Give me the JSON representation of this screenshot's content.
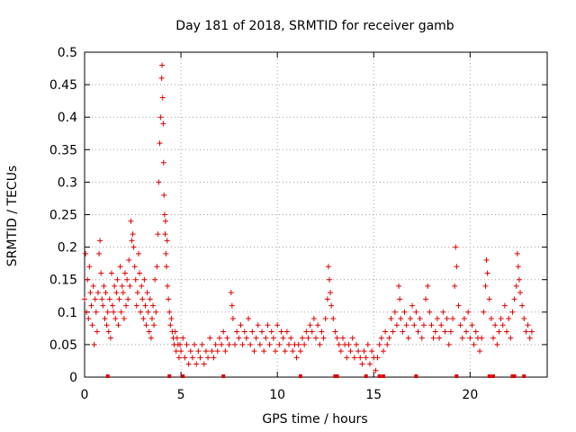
{
  "chart_data": {
    "type": "scatter",
    "title": "Day 181 of 2018, SRMTID for receiver gamb",
    "xlabel": "GPS time / hours",
    "ylabel": "SRMTID / TECUs",
    "xlim": [
      0,
      24
    ],
    "ylim": [
      0,
      0.5
    ],
    "x_ticks": [
      0,
      5,
      10,
      15,
      20
    ],
    "y_ticks": [
      0,
      0.05,
      0.1,
      0.15,
      0.2,
      0.25,
      0.3,
      0.35,
      0.4,
      0.45,
      0.5
    ],
    "x_tick_labels": [
      "0",
      "5",
      "10",
      "15",
      "20"
    ],
    "y_tick_labels": [
      "0",
      "0.05",
      "0.1",
      "0.15",
      "0.2",
      "0.25",
      "0.3",
      "0.35",
      "0.4",
      "0.45",
      "0.5"
    ],
    "grid": true,
    "marker": "+",
    "color": "#e00000",
    "series": [
      {
        "name": "SRMTID",
        "points": [
          [
            0.0,
            0.12
          ],
          [
            0.05,
            0.19
          ],
          [
            0.1,
            0.1
          ],
          [
            0.15,
            0.15
          ],
          [
            0.2,
            0.09
          ],
          [
            0.25,
            0.17
          ],
          [
            0.3,
            0.13
          ],
          [
            0.35,
            0.11
          ],
          [
            0.4,
            0.08
          ],
          [
            0.45,
            0.14
          ],
          [
            0.5,
            0.05
          ],
          [
            0.55,
            0.12
          ],
          [
            0.6,
            0.1
          ],
          [
            0.65,
            0.07
          ],
          [
            0.7,
            0.13
          ],
          [
            0.75,
            0.19
          ],
          [
            0.8,
            0.21
          ],
          [
            0.85,
            0.16
          ],
          [
            0.9,
            0.12
          ],
          [
            0.95,
            0.11
          ],
          [
            1.0,
            0.14
          ],
          [
            1.05,
            0.09
          ],
          [
            1.1,
            0.13
          ],
          [
            1.15,
            0.08
          ],
          [
            1.2,
            0.1
          ],
          [
            1.25,
            0.07
          ],
          [
            1.3,
            0.12
          ],
          [
            1.35,
            0.06
          ],
          [
            1.4,
            0.16
          ],
          [
            1.45,
            0.11
          ],
          [
            1.5,
            0.1
          ],
          [
            1.55,
            0.14
          ],
          [
            1.6,
            0.09
          ],
          [
            1.65,
            0.13
          ],
          [
            1.7,
            0.15
          ],
          [
            1.75,
            0.08
          ],
          [
            1.8,
            0.12
          ],
          [
            1.85,
            0.17
          ],
          [
            1.9,
            0.1
          ],
          [
            1.95,
            0.14
          ],
          [
            2.0,
            0.13
          ],
          [
            2.05,
            0.09
          ],
          [
            2.1,
            0.16
          ],
          [
            2.15,
            0.11
          ],
          [
            2.2,
            0.15
          ],
          [
            2.25,
            0.12
          ],
          [
            2.3,
            0.18
          ],
          [
            2.35,
            0.14
          ],
          [
            2.4,
            0.24
          ],
          [
            2.45,
            0.21
          ],
          [
            2.5,
            0.22
          ],
          [
            2.55,
            0.2
          ],
          [
            2.6,
            0.17
          ],
          [
            2.65,
            0.15
          ],
          [
            2.7,
            0.11
          ],
          [
            2.75,
            0.13
          ],
          [
            2.8,
            0.19
          ],
          [
            2.85,
            0.16
          ],
          [
            2.9,
            0.1
          ],
          [
            2.95,
            0.14
          ],
          [
            3.0,
            0.12
          ],
          [
            3.05,
            0.09
          ],
          [
            3.1,
            0.15
          ],
          [
            3.15,
            0.11
          ],
          [
            3.2,
            0.08
          ],
          [
            3.25,
            0.13
          ],
          [
            3.3,
            0.1
          ],
          [
            3.35,
            0.07
          ],
          [
            3.4,
            0.12
          ],
          [
            3.45,
            0.06
          ],
          [
            3.5,
            0.09
          ],
          [
            3.55,
            0.11
          ],
          [
            3.6,
            0.08
          ],
          [
            3.65,
            0.15
          ],
          [
            3.7,
            0.1
          ],
          [
            3.75,
            0.17
          ],
          [
            3.8,
            0.22
          ],
          [
            3.85,
            0.3
          ],
          [
            3.9,
            0.36
          ],
          [
            3.95,
            0.4
          ],
          [
            4.0,
            0.46
          ],
          [
            4.02,
            0.48
          ],
          [
            4.05,
            0.43
          ],
          [
            4.08,
            0.39
          ],
          [
            4.1,
            0.33
          ],
          [
            4.12,
            0.28
          ],
          [
            4.15,
            0.25
          ],
          [
            4.18,
            0.22
          ],
          [
            4.2,
            0.24
          ],
          [
            4.22,
            0.19
          ],
          [
            4.25,
            0.17
          ],
          [
            4.28,
            0.21
          ],
          [
            4.3,
            0.14
          ],
          [
            4.35,
            0.12
          ],
          [
            4.4,
            0.1
          ],
          [
            4.45,
            0.08
          ],
          [
            4.5,
            0.09
          ],
          [
            4.55,
            0.07
          ],
          [
            4.6,
            0.06
          ],
          [
            4.65,
            0.05
          ],
          [
            4.7,
            0.07
          ],
          [
            4.75,
            0.04
          ],
          [
            4.8,
            0.06
          ],
          [
            4.85,
            0.05
          ],
          [
            4.9,
            0.03
          ],
          [
            4.95,
            0.05
          ],
          [
            5.0,
            0.04
          ],
          [
            5.1,
            0.06
          ],
          [
            5.2,
            0.03
          ],
          [
            5.3,
            0.05
          ],
          [
            5.4,
            0.02
          ],
          [
            5.5,
            0.04
          ],
          [
            5.6,
            0.03
          ],
          [
            5.7,
            0.05
          ],
          [
            5.8,
            0.02
          ],
          [
            5.9,
            0.04
          ],
          [
            6.0,
            0.03
          ],
          [
            6.1,
            0.05
          ],
          [
            6.2,
            0.02
          ],
          [
            6.3,
            0.04
          ],
          [
            6.4,
            0.03
          ],
          [
            6.5,
            0.06
          ],
          [
            6.6,
            0.04
          ],
          [
            6.7,
            0.03
          ],
          [
            6.8,
            0.05
          ],
          [
            6.9,
            0.04
          ],
          [
            7.0,
            0.06
          ],
          [
            7.1,
            0.05
          ],
          [
            7.2,
            0.07
          ],
          [
            7.3,
            0.04
          ],
          [
            7.4,
            0.06
          ],
          [
            7.5,
            0.05
          ],
          [
            7.6,
            0.13
          ],
          [
            7.65,
            0.11
          ],
          [
            7.7,
            0.09
          ],
          [
            7.8,
            0.05
          ],
          [
            7.9,
            0.07
          ],
          [
            8.0,
            0.06
          ],
          [
            8.1,
            0.08
          ],
          [
            8.2,
            0.05
          ],
          [
            8.3,
            0.07
          ],
          [
            8.4,
            0.06
          ],
          [
            8.5,
            0.09
          ],
          [
            8.6,
            0.05
          ],
          [
            8.7,
            0.07
          ],
          [
            8.8,
            0.04
          ],
          [
            8.9,
            0.06
          ],
          [
            9.0,
            0.08
          ],
          [
            9.1,
            0.05
          ],
          [
            9.2,
            0.07
          ],
          [
            9.3,
            0.04
          ],
          [
            9.4,
            0.06
          ],
          [
            9.5,
            0.08
          ],
          [
            9.6,
            0.05
          ],
          [
            9.7,
            0.07
          ],
          [
            9.8,
            0.06
          ],
          [
            9.9,
            0.04
          ],
          [
            10.0,
            0.08
          ],
          [
            10.1,
            0.05
          ],
          [
            10.2,
            0.07
          ],
          [
            10.3,
            0.06
          ],
          [
            10.4,
            0.04
          ],
          [
            10.5,
            0.07
          ],
          [
            10.6,
            0.05
          ],
          [
            10.7,
            0.06
          ],
          [
            10.8,
            0.04
          ],
          [
            10.9,
            0.05
          ],
          [
            11.0,
            0.03
          ],
          [
            11.1,
            0.05
          ],
          [
            11.2,
            0.04
          ],
          [
            11.3,
            0.06
          ],
          [
            11.4,
            0.05
          ],
          [
            11.5,
            0.07
          ],
          [
            11.6,
            0.06
          ],
          [
            11.7,
            0.08
          ],
          [
            11.8,
            0.07
          ],
          [
            11.9,
            0.09
          ],
          [
            12.0,
            0.06
          ],
          [
            12.1,
            0.08
          ],
          [
            12.2,
            0.05
          ],
          [
            12.3,
            0.07
          ],
          [
            12.4,
            0.06
          ],
          [
            12.5,
            0.09
          ],
          [
            12.6,
            0.12
          ],
          [
            12.65,
            0.17
          ],
          [
            12.7,
            0.15
          ],
          [
            12.75,
            0.13
          ],
          [
            12.8,
            0.11
          ],
          [
            12.9,
            0.09
          ],
          [
            13.0,
            0.07
          ],
          [
            13.1,
            0.06
          ],
          [
            13.2,
            0.05
          ],
          [
            13.3,
            0.04
          ],
          [
            13.4,
            0.06
          ],
          [
            13.5,
            0.05
          ],
          [
            13.6,
            0.03
          ],
          [
            13.7,
            0.05
          ],
          [
            13.8,
            0.04
          ],
          [
            13.9,
            0.06
          ],
          [
            14.0,
            0.03
          ],
          [
            14.1,
            0.05
          ],
          [
            14.2,
            0.04
          ],
          [
            14.3,
            0.03
          ],
          [
            14.4,
            0.02
          ],
          [
            14.5,
            0.04
          ],
          [
            14.6,
            0.03
          ],
          [
            14.7,
            0.05
          ],
          [
            14.8,
            0.02
          ],
          [
            14.9,
            0.04
          ],
          [
            15.0,
            0.03
          ],
          [
            15.1,
            0.01
          ],
          [
            15.2,
            0.03
          ],
          [
            15.3,
            0.05
          ],
          [
            15.4,
            0.06
          ],
          [
            15.5,
            0.04
          ],
          [
            15.6,
            0.07
          ],
          [
            15.7,
            0.05
          ],
          [
            15.8,
            0.06
          ],
          [
            15.9,
            0.09
          ],
          [
            16.0,
            0.07
          ],
          [
            16.1,
            0.1
          ],
          [
            16.2,
            0.08
          ],
          [
            16.3,
            0.14
          ],
          [
            16.35,
            0.12
          ],
          [
            16.4,
            0.09
          ],
          [
            16.5,
            0.07
          ],
          [
            16.6,
            0.1
          ],
          [
            16.7,
            0.08
          ],
          [
            16.8,
            0.06
          ],
          [
            16.9,
            0.09
          ],
          [
            17.0,
            0.11
          ],
          [
            17.1,
            0.08
          ],
          [
            17.2,
            0.1
          ],
          [
            17.3,
            0.07
          ],
          [
            17.4,
            0.09
          ],
          [
            17.5,
            0.06
          ],
          [
            17.6,
            0.08
          ],
          [
            17.7,
            0.12
          ],
          [
            17.8,
            0.14
          ],
          [
            17.9,
            0.1
          ],
          [
            18.0,
            0.08
          ],
          [
            18.1,
            0.06
          ],
          [
            18.2,
            0.07
          ],
          [
            18.3,
            0.09
          ],
          [
            18.4,
            0.06
          ],
          [
            18.5,
            0.08
          ],
          [
            18.6,
            0.1
          ],
          [
            18.7,
            0.07
          ],
          [
            18.8,
            0.09
          ],
          [
            18.9,
            0.05
          ],
          [
            19.0,
            0.07
          ],
          [
            19.1,
            0.09
          ],
          [
            19.2,
            0.14
          ],
          [
            19.25,
            0.2
          ],
          [
            19.3,
            0.17
          ],
          [
            19.4,
            0.11
          ],
          [
            19.5,
            0.08
          ],
          [
            19.6,
            0.06
          ],
          [
            19.7,
            0.09
          ],
          [
            19.8,
            0.07
          ],
          [
            19.9,
            0.1
          ],
          [
            20.0,
            0.06
          ],
          [
            20.1,
            0.08
          ],
          [
            20.2,
            0.05
          ],
          [
            20.3,
            0.07
          ],
          [
            20.4,
            0.06
          ],
          [
            20.5,
            0.04
          ],
          [
            20.6,
            0.06
          ],
          [
            20.7,
            0.1
          ],
          [
            20.8,
            0.14
          ],
          [
            20.85,
            0.18
          ],
          [
            20.9,
            0.16
          ],
          [
            21.0,
            0.12
          ],
          [
            21.1,
            0.09
          ],
          [
            21.2,
            0.06
          ],
          [
            21.3,
            0.08
          ],
          [
            21.4,
            0.05
          ],
          [
            21.5,
            0.07
          ],
          [
            21.6,
            0.09
          ],
          [
            21.7,
            0.08
          ],
          [
            21.8,
            0.11
          ],
          [
            21.9,
            0.07
          ],
          [
            22.0,
            0.09
          ],
          [
            22.1,
            0.06
          ],
          [
            22.2,
            0.1
          ],
          [
            22.3,
            0.12
          ],
          [
            22.4,
            0.14
          ],
          [
            22.45,
            0.19
          ],
          [
            22.5,
            0.17
          ],
          [
            22.55,
            0.15
          ],
          [
            22.6,
            0.13
          ],
          [
            22.7,
            0.11
          ],
          [
            22.8,
            0.09
          ],
          [
            22.9,
            0.07
          ],
          [
            23.0,
            0.08
          ],
          [
            23.1,
            0.06
          ],
          [
            23.2,
            0.07
          ]
        ]
      }
    ],
    "gap_markers_x": [
      1.2,
      4.4,
      5.1,
      7.2,
      11.2,
      13.0,
      13.1,
      14.6,
      15.3,
      15.5,
      17.2,
      19.3,
      21.0,
      21.2,
      22.2,
      22.3,
      22.8
    ]
  }
}
